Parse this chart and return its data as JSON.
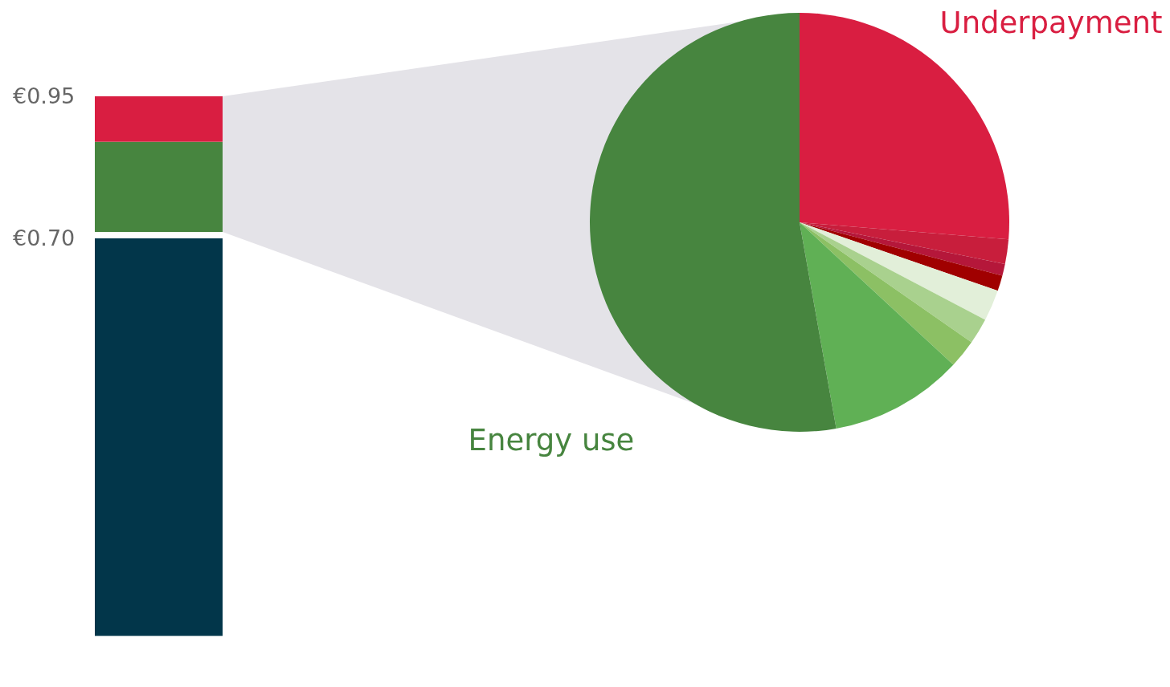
{
  "chart_data": [
    {
      "type": "bar",
      "stacked": true,
      "categories": [
        null
      ],
      "ylim": [
        0,
        0.95
      ],
      "yticks": [
        {
          "value": 0.7,
          "label": "€0.70"
        },
        {
          "value": 0.95,
          "label": "€0.95"
        }
      ],
      "tick_labels": "y",
      "series": [
        {
          "color": "#02364a",
          "values": [
            0.7
          ]
        },
        {
          "color": "#47853f",
          "values": [
            0.17
          ]
        },
        {
          "color": "#d91e41",
          "values": [
            0.08
          ]
        }
      ]
    },
    {
      "type": "pie",
      "categories": [
        "Underpayment",
        null,
        null,
        null,
        null,
        null,
        null,
        null,
        "Energy use"
      ],
      "values": [
        26.3,
        1.9,
        0.9,
        1.2,
        2.4,
        2.0,
        2.2,
        10.3,
        52.8
      ],
      "colors": [
        "#d91e41",
        "#c81e3c",
        "#b5173a",
        "#a00000",
        "#e2efd9",
        "#a9d18e",
        "#8cc064",
        "#60b055",
        "#47853f"
      ]
    }
  ]
}
